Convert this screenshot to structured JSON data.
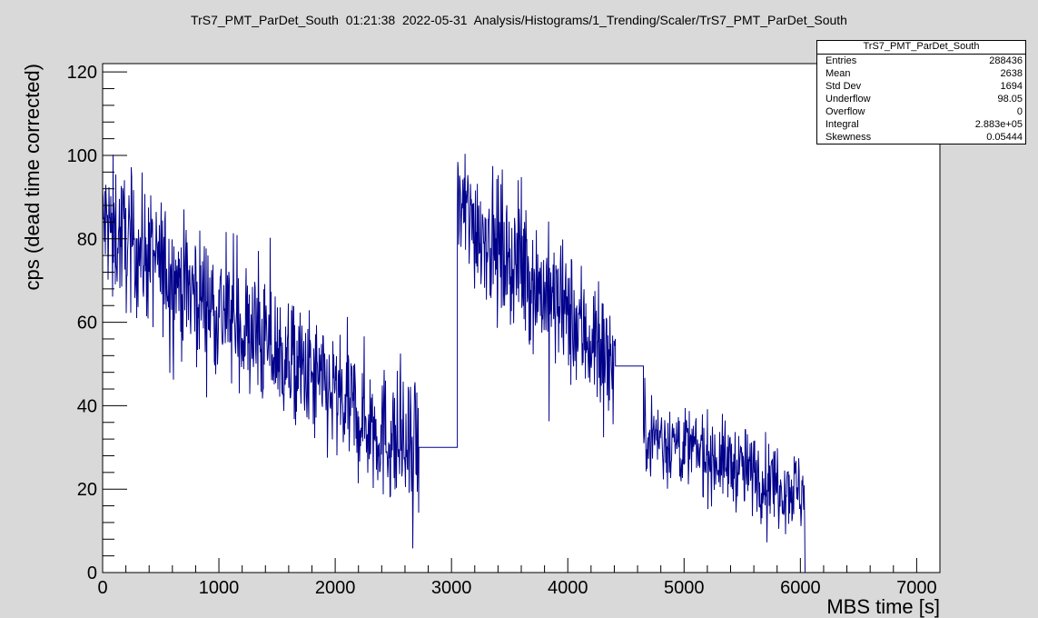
{
  "chart_data": {
    "type": "line",
    "title": "TrS7_PMT_ParDet_South  01:21:38  2022-05-31  Analysis/Histograms/1_Trending/Scaler/TrS7_PMT_ParDet_South",
    "xlabel": "MBS time [s]",
    "ylabel": "cps (dead time corrected)",
    "xlim": [
      0,
      7200
    ],
    "ylim": [
      0,
      122
    ],
    "x_ticks": [
      0,
      1000,
      2000,
      3000,
      4000,
      5000,
      6000,
      7000
    ],
    "y_ticks": [
      0,
      20,
      40,
      60,
      80,
      100,
      120
    ],
    "grid": false,
    "legend": "none",
    "line_color": "#00008b",
    "segments": [
      {
        "x_start": 0,
        "x_end": 2720,
        "y_start": 84,
        "y_end": 27,
        "noise": 8
      },
      {
        "x_start": 2720,
        "x_end": 3050,
        "flat": 30
      },
      {
        "x_start": 3050,
        "x_end": 4410,
        "y_start": 88,
        "y_end": 50,
        "noise": 8
      },
      {
        "x_start": 4410,
        "x_end": 4650,
        "flat": 49.5
      },
      {
        "x_start": 4650,
        "x_end": 6040,
        "y_start": 34,
        "y_end": 19,
        "noise": 5
      },
      {
        "x_start": 6040,
        "x_end": 7200,
        "flat": 0
      }
    ]
  },
  "stats": {
    "title": "TrS7_PMT_ParDet_South",
    "rows": [
      {
        "label": "Entries",
        "value": "288436"
      },
      {
        "label": "Mean",
        "value": "2638"
      },
      {
        "label": "Std Dev",
        "value": "1694"
      },
      {
        "label": "Underflow",
        "value": "98.05"
      },
      {
        "label": "Overflow",
        "value": "0"
      },
      {
        "label": "Integral",
        "value": "2.883e+05"
      },
      {
        "label": "Skewness",
        "value": "0.05444"
      }
    ]
  }
}
